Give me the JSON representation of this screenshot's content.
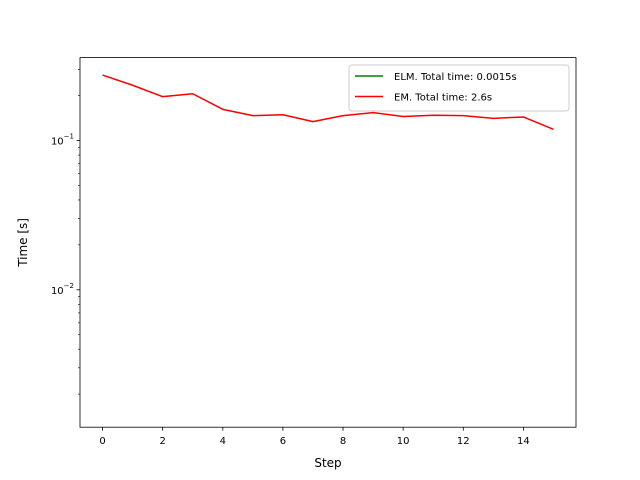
{
  "chart_data": {
    "type": "line",
    "title": "",
    "xlabel": "Step",
    "ylabel": "Time [s]",
    "y_scale": "log",
    "xlim": [
      -0.75,
      15.75
    ],
    "ylim": [
      0.0012,
      0.36
    ],
    "x_ticks": [
      0,
      2,
      4,
      6,
      8,
      10,
      12,
      14
    ],
    "y_ticks": [
      {
        "value": 0.01,
        "base": "10",
        "exponent": "−2"
      },
      {
        "value": 0.1,
        "base": "10",
        "exponent": "−1"
      }
    ],
    "grid": false,
    "legend_position": "top-right",
    "series": [
      {
        "name": "ELM. Total time: 0.0015s",
        "color": "#008000",
        "x": [],
        "y": []
      },
      {
        "name": "EM. Total time: 2.6s",
        "color": "#ff0000",
        "x": [
          0,
          1,
          2,
          3,
          4,
          5,
          6,
          7,
          8,
          9,
          10,
          11,
          12,
          13,
          14,
          15
        ],
        "y": [
          0.275,
          0.235,
          0.197,
          0.206,
          0.162,
          0.147,
          0.149,
          0.134,
          0.147,
          0.154,
          0.145,
          0.148,
          0.147,
          0.141,
          0.144,
          0.119
        ]
      }
    ]
  }
}
